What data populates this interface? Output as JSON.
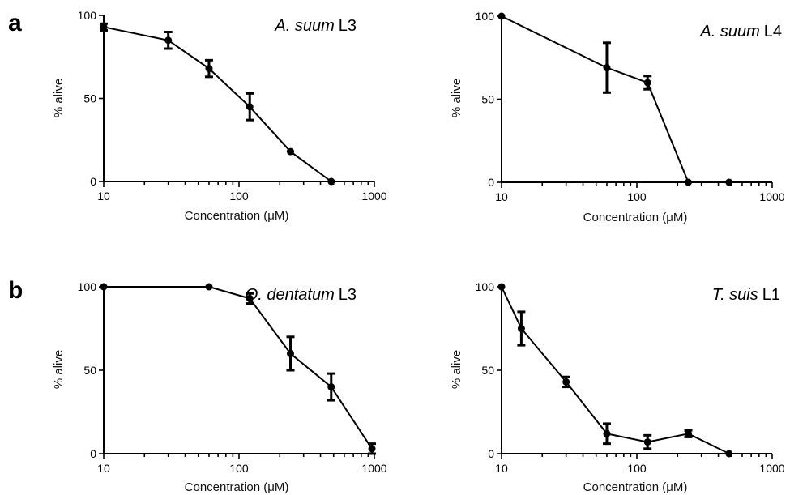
{
  "panel_letters": [
    "a",
    "b"
  ],
  "chart_data": [
    {
      "type": "line",
      "title_italic": "A. suum",
      "title_suffix": "L3",
      "xlabel": "Concentration (μM)",
      "ylabel": "% alive",
      "xscale": "log",
      "xlim": [
        10,
        1000
      ],
      "ylim": [
        0,
        100
      ],
      "xticks": [
        10,
        100,
        1000
      ],
      "yticks": [
        0,
        50,
        100
      ],
      "grid": false,
      "series": [
        {
          "x": [
            10,
            30,
            60,
            120,
            240,
            480
          ],
          "y": [
            93,
            85,
            68,
            45,
            18,
            0
          ],
          "err": [
            2,
            5,
            5,
            8,
            0,
            0
          ]
        }
      ]
    },
    {
      "type": "line",
      "title_italic": "A. suum",
      "title_suffix": "L4",
      "xlabel": "Concentration (μM)",
      "ylabel": "% alive",
      "xscale": "log",
      "xlim": [
        10,
        1000
      ],
      "ylim": [
        0,
        100
      ],
      "xticks": [
        10,
        100,
        1000
      ],
      "yticks": [
        0,
        50,
        100
      ],
      "grid": false,
      "series": [
        {
          "x": [
            10,
            60,
            120,
            240,
            480
          ],
          "y": [
            100,
            69,
            60,
            0,
            0
          ],
          "err": [
            0,
            15,
            4,
            0,
            0
          ]
        }
      ]
    },
    {
      "type": "line",
      "title_italic": "O. dentatum",
      "title_suffix": "L3",
      "xlabel": "Concentration (μM)",
      "ylabel": "% alive",
      "xscale": "log",
      "xlim": [
        10,
        1000
      ],
      "ylim": [
        0,
        100
      ],
      "xticks": [
        10,
        100,
        1000
      ],
      "yticks": [
        0,
        50,
        100
      ],
      "grid": false,
      "series": [
        {
          "x": [
            10,
            60,
            120,
            240,
            480,
            960
          ],
          "y": [
            100,
            100,
            93,
            60,
            40,
            3
          ],
          "err": [
            0,
            0,
            3,
            10,
            8,
            3
          ]
        }
      ]
    },
    {
      "type": "line",
      "title_italic": "T. suis",
      "title_suffix": "L1",
      "xlabel": "Concentration (μM)",
      "ylabel": "% alive",
      "xscale": "log",
      "xlim": [
        10,
        1000
      ],
      "ylim": [
        0,
        100
      ],
      "xticks": [
        10,
        100,
        1000
      ],
      "yticks": [
        0,
        50,
        100
      ],
      "grid": false,
      "series": [
        {
          "x": [
            10,
            14,
            30,
            60,
            120,
            240,
            480
          ],
          "y": [
            100,
            75,
            43,
            12,
            7,
            12,
            0
          ],
          "err": [
            0,
            10,
            3,
            6,
            4,
            2,
            0
          ]
        }
      ]
    }
  ]
}
